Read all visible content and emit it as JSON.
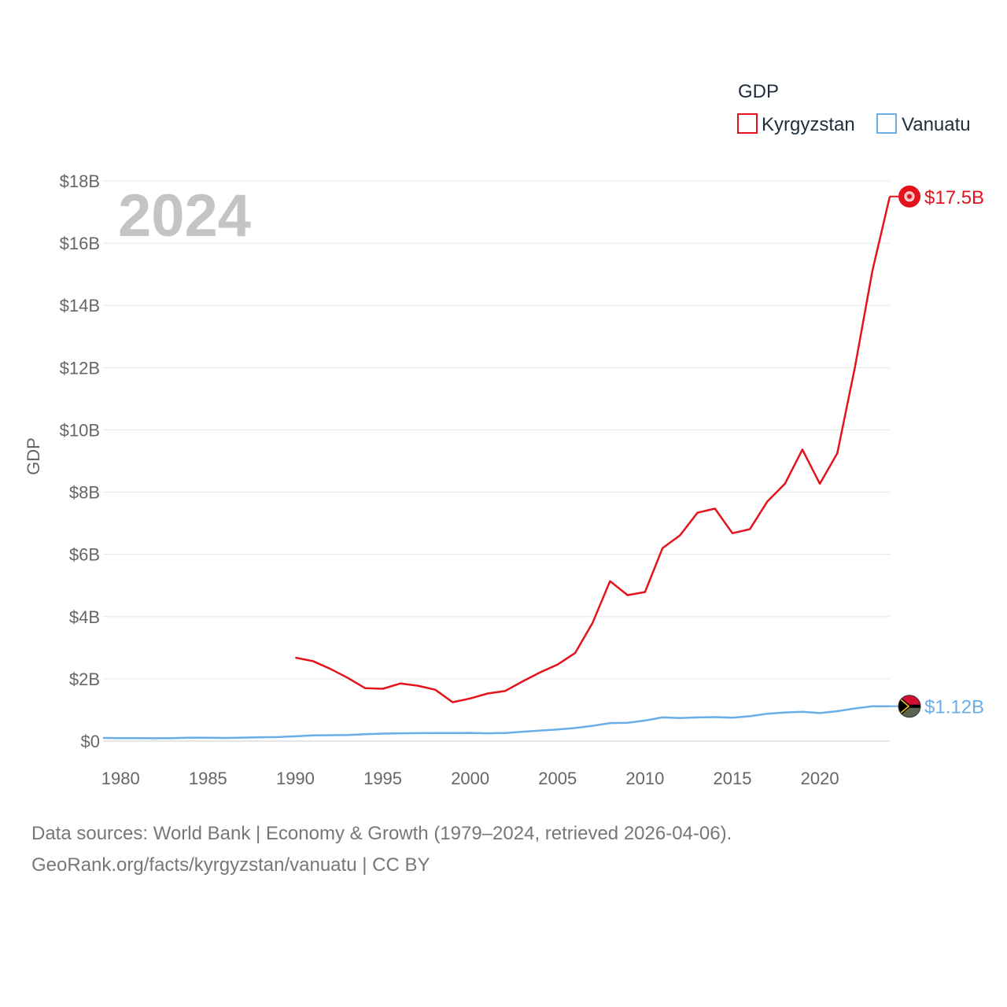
{
  "chart_data": {
    "type": "line",
    "title": "",
    "legend_title": "GDP",
    "ylabel": "GDP",
    "xlabel": "",
    "year_display": "2024",
    "ylim": [
      0,
      18000000000
    ],
    "xlim": [
      1979,
      2024
    ],
    "y_ticks": [
      {
        "value": 0,
        "label": "$0"
      },
      {
        "value": 2000000000,
        "label": "$2B"
      },
      {
        "value": 4000000000,
        "label": "$4B"
      },
      {
        "value": 6000000000,
        "label": "$6B"
      },
      {
        "value": 8000000000,
        "label": "$8B"
      },
      {
        "value": 10000000000,
        "label": "$10B"
      },
      {
        "value": 12000000000,
        "label": "$12B"
      },
      {
        "value": 14000000000,
        "label": "$14B"
      },
      {
        "value": 16000000000,
        "label": "$16B"
      },
      {
        "value": 18000000000,
        "label": "$18B"
      }
    ],
    "x_ticks": [
      1980,
      1985,
      1990,
      1995,
      2000,
      2005,
      2010,
      2015,
      2020
    ],
    "series": [
      {
        "name": "Kyrgyzstan",
        "color": "#e4131b",
        "end_label": "$17.5B",
        "x": [
          1990,
          1991,
          1992,
          1993,
          1994,
          1995,
          1996,
          1997,
          1998,
          1999,
          2000,
          2001,
          2002,
          2003,
          2004,
          2005,
          2006,
          2007,
          2008,
          2009,
          2010,
          2011,
          2012,
          2013,
          2014,
          2015,
          2016,
          2017,
          2018,
          2019,
          2020,
          2021,
          2022,
          2023,
          2024
        ],
        "values": [
          2680000000,
          2570000000,
          2320000000,
          2030000000,
          1700000000,
          1680000000,
          1850000000,
          1780000000,
          1650000000,
          1250000000,
          1370000000,
          1530000000,
          1610000000,
          1920000000,
          2210000000,
          2460000000,
          2830000000,
          3800000000,
          5140000000,
          4690000000,
          4790000000,
          6200000000,
          6610000000,
          7340000000,
          7470000000,
          6680000000,
          6810000000,
          7700000000,
          8270000000,
          9370000000,
          8270000000,
          9250000000,
          12000000000,
          15100000000,
          17500000000
        ]
      },
      {
        "name": "Vanuatu",
        "color": "#6aaee8",
        "end_label": "$1.12B",
        "x": [
          1979,
          1980,
          1981,
          1982,
          1983,
          1984,
          1985,
          1986,
          1987,
          1988,
          1989,
          1990,
          1991,
          1992,
          1993,
          1994,
          1995,
          1996,
          1997,
          1998,
          1999,
          2000,
          2001,
          2002,
          2003,
          2004,
          2005,
          2006,
          2007,
          2008,
          2009,
          2010,
          2011,
          2012,
          2013,
          2014,
          2015,
          2016,
          2017,
          2018,
          2019,
          2020,
          2021,
          2022,
          2023,
          2024
        ],
        "values": [
          100000000,
          97000000,
          94000000,
          92000000,
          95000000,
          110000000,
          105000000,
          100000000,
          110000000,
          125000000,
          130000000,
          155000000,
          185000000,
          190000000,
          195000000,
          220000000,
          240000000,
          250000000,
          255000000,
          258000000,
          260000000,
          262000000,
          250000000,
          260000000,
          300000000,
          340000000,
          375000000,
          420000000,
          490000000,
          580000000,
          590000000,
          660000000,
          760000000,
          740000000,
          760000000,
          770000000,
          750000000,
          800000000,
          880000000,
          920000000,
          940000000,
          900000000,
          960000000,
          1050000000,
          1120000000,
          1120000000
        ]
      }
    ]
  },
  "footer": {
    "line1": "Data sources: World Bank | Economy & Growth (1979–2024, retrieved 2026-04-06).",
    "line2": "GeoRank.org/facts/kyrgyzstan/vanuatu | CC BY"
  }
}
